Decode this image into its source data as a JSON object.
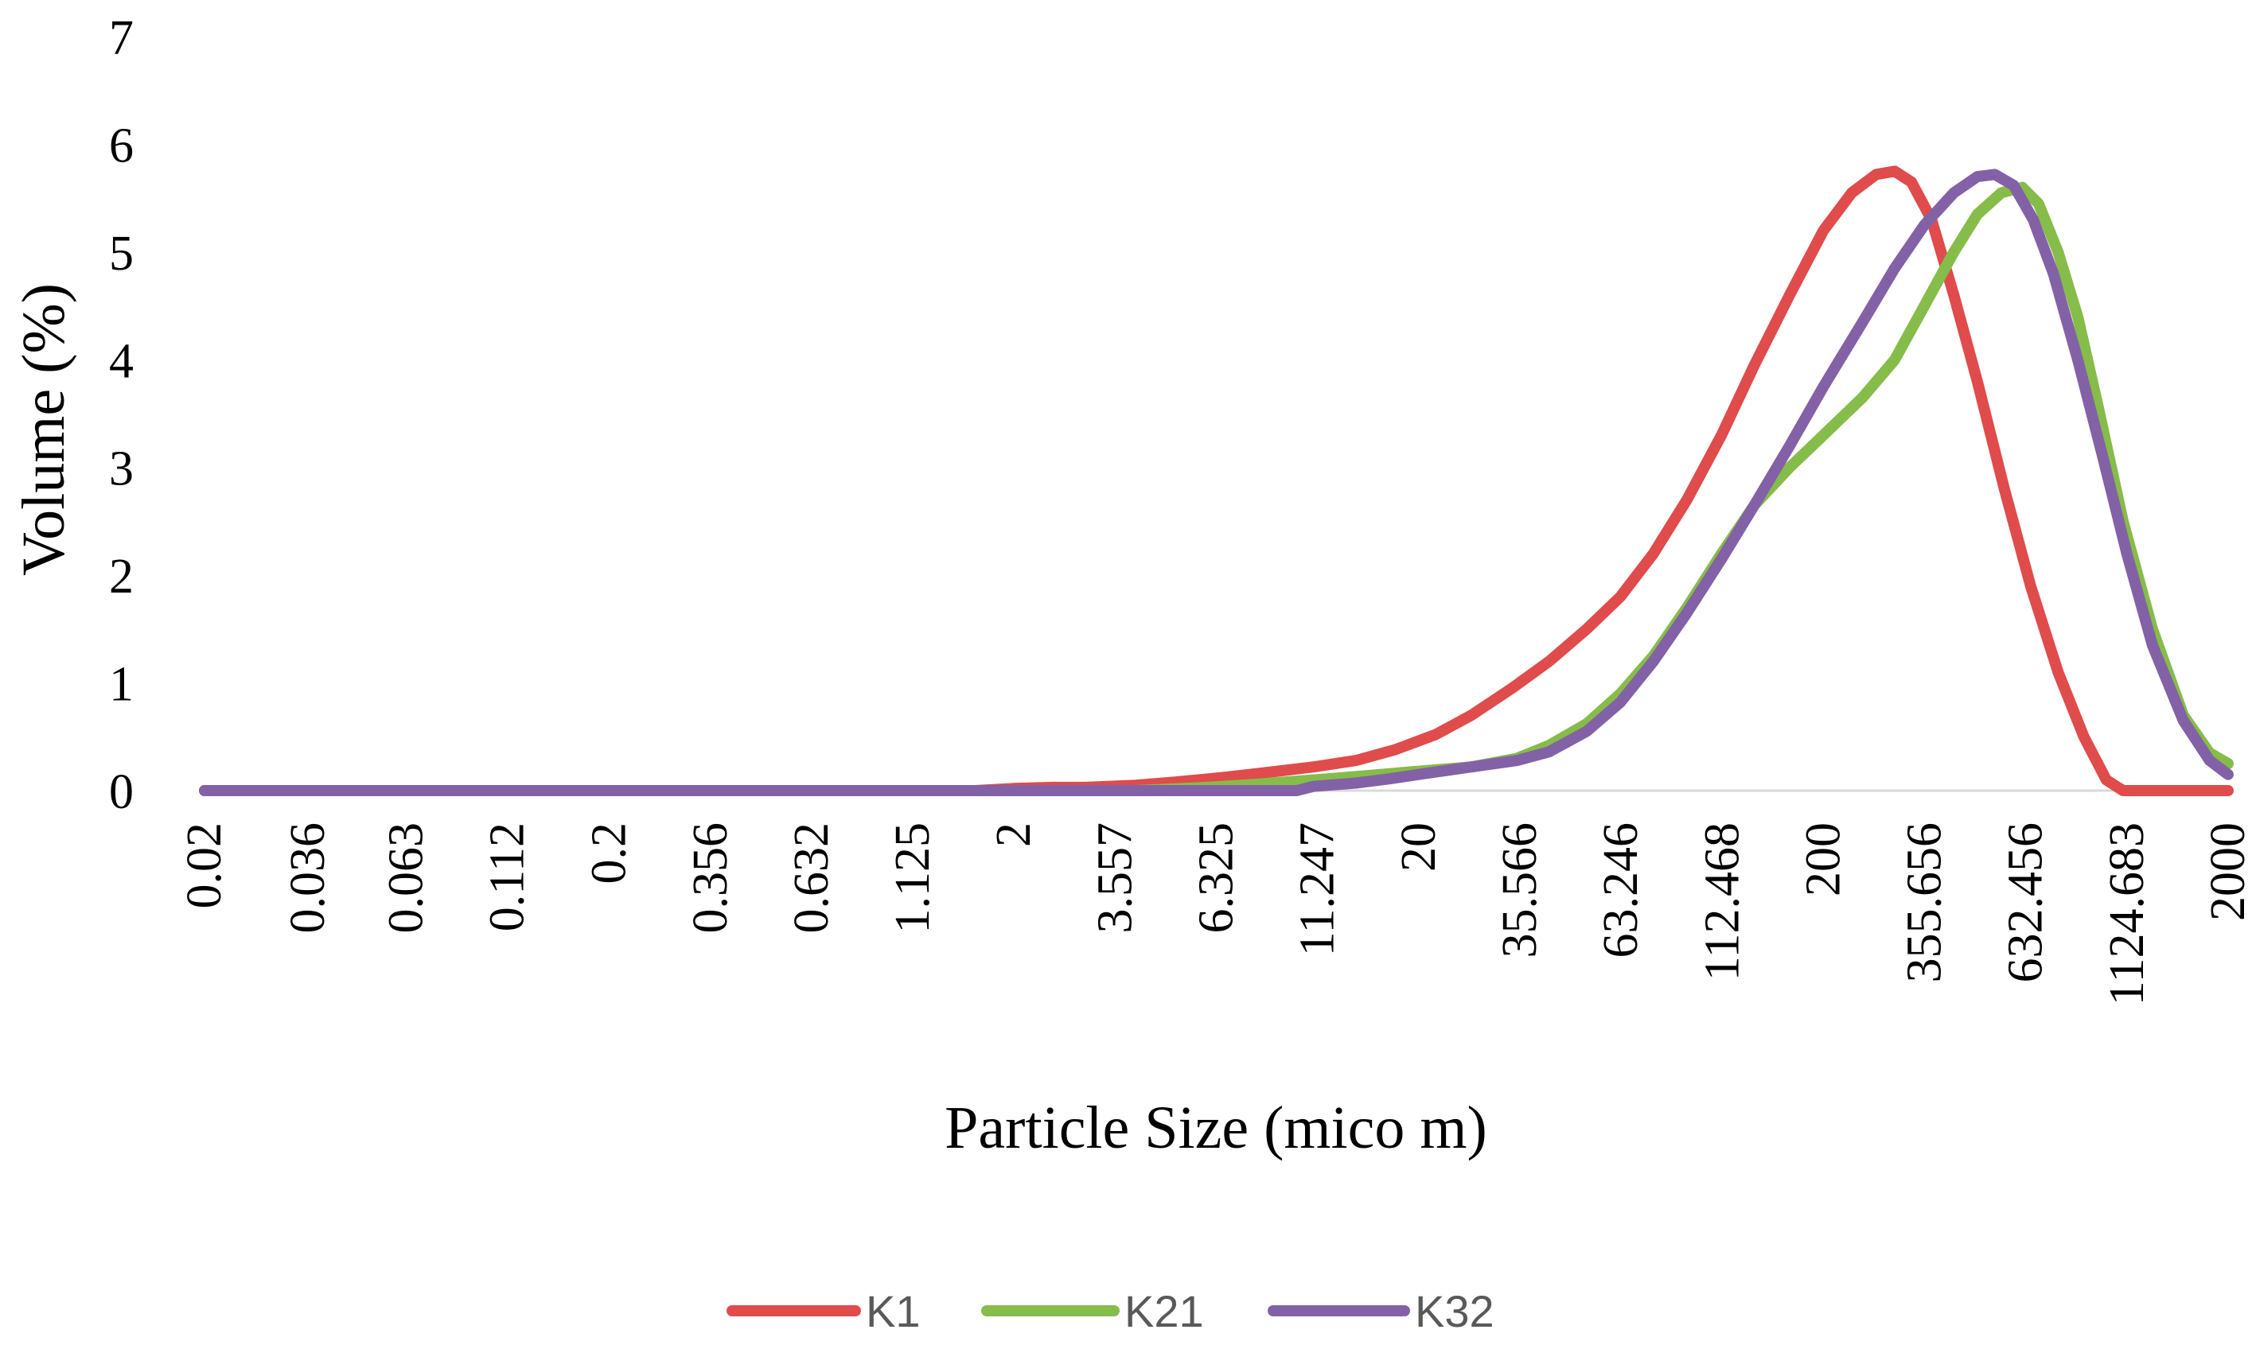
{
  "chart_data": {
    "type": "line",
    "title": "",
    "xlabel": "Particle Size (mico m)",
    "ylabel": "Volume (%)",
    "ylim": [
      0,
      7
    ],
    "yticks": [
      "0",
      "1",
      "2",
      "3",
      "4",
      "5",
      "6",
      "7"
    ],
    "x_tick_labels": [
      "0.02",
      "0.036",
      "0.063",
      "0.112",
      "0.2",
      "0.356",
      "0.632",
      "1.125",
      "2",
      "3.557",
      "6.325",
      "11.247",
      "20",
      "35.566",
      "63.246",
      "112.468",
      "200",
      "355.656",
      "632.456",
      "1124.683",
      "2000"
    ],
    "x_range_log10": [
      -1.699,
      3.301
    ],
    "grid": false,
    "legend_position": "bottom",
    "series": [
      {
        "name": "K1",
        "color": "#E04B4B",
        "points": [
          [
            0.02,
            0
          ],
          [
            0.2,
            0
          ],
          [
            1.0,
            0
          ],
          [
            1.6,
            0
          ],
          [
            2.0,
            0.02
          ],
          [
            2.5,
            0.03
          ],
          [
            3.0,
            0.03
          ],
          [
            4.0,
            0.05
          ],
          [
            5.0,
            0.08
          ],
          [
            6.5,
            0.12
          ],
          [
            8.5,
            0.17
          ],
          [
            11.0,
            0.22
          ],
          [
            14.0,
            0.28
          ],
          [
            17.5,
            0.38
          ],
          [
            22.0,
            0.52
          ],
          [
            27.0,
            0.7
          ],
          [
            34.0,
            0.95
          ],
          [
            42.0,
            1.2
          ],
          [
            52.0,
            1.5
          ],
          [
            63.0,
            1.8
          ],
          [
            76.0,
            2.2
          ],
          [
            92.0,
            2.7
          ],
          [
            112.0,
            3.3
          ],
          [
            135.0,
            3.95
          ],
          [
            165.0,
            4.6
          ],
          [
            200.0,
            5.2
          ],
          [
            235.0,
            5.55
          ],
          [
            270.0,
            5.72
          ],
          [
            300.0,
            5.75
          ],
          [
            330.0,
            5.65
          ],
          [
            370.0,
            5.3
          ],
          [
            420.0,
            4.6
          ],
          [
            480.0,
            3.8
          ],
          [
            560.0,
            2.8
          ],
          [
            650.0,
            1.9
          ],
          [
            760.0,
            1.1
          ],
          [
            880.0,
            0.5
          ],
          [
            1000.0,
            0.1
          ],
          [
            1100.0,
            0
          ],
          [
            1300.0,
            0
          ],
          [
            2000.0,
            0
          ]
        ]
      },
      {
        "name": "K21",
        "color": "#86BC4A",
        "points": [
          [
            0.02,
            0
          ],
          [
            0.2,
            0
          ],
          [
            2.0,
            0
          ],
          [
            4.0,
            0
          ],
          [
            6.0,
            0.03
          ],
          [
            8.0,
            0.06
          ],
          [
            11.0,
            0.1
          ],
          [
            14.0,
            0.13
          ],
          [
            20.0,
            0.18
          ],
          [
            27.0,
            0.22
          ],
          [
            35.0,
            0.3
          ],
          [
            42.0,
            0.42
          ],
          [
            52.0,
            0.62
          ],
          [
            63.0,
            0.9
          ],
          [
            76.0,
            1.25
          ],
          [
            92.0,
            1.7
          ],
          [
            112.0,
            2.2
          ],
          [
            135.0,
            2.65
          ],
          [
            165.0,
            3.0
          ],
          [
            200.0,
            3.3
          ],
          [
            250.0,
            3.65
          ],
          [
            300.0,
            4.0
          ],
          [
            355.0,
            4.5
          ],
          [
            420.0,
            5.0
          ],
          [
            480.0,
            5.35
          ],
          [
            550.0,
            5.55
          ],
          [
            620.0,
            5.6
          ],
          [
            680.0,
            5.45
          ],
          [
            760.0,
            5.0
          ],
          [
            850.0,
            4.4
          ],
          [
            950.0,
            3.6
          ],
          [
            1100.0,
            2.5
          ],
          [
            1300.0,
            1.5
          ],
          [
            1550.0,
            0.7
          ],
          [
            1800.0,
            0.35
          ],
          [
            2000.0,
            0.25
          ]
        ]
      },
      {
        "name": "K32",
        "color": "#8361A6",
        "points": [
          [
            0.02,
            0
          ],
          [
            0.2,
            0
          ],
          [
            2.0,
            0
          ],
          [
            6.0,
            0
          ],
          [
            10.0,
            0
          ],
          [
            11.0,
            0.04
          ],
          [
            14.0,
            0.07
          ],
          [
            17.0,
            0.11
          ],
          [
            20.0,
            0.15
          ],
          [
            27.0,
            0.22
          ],
          [
            35.0,
            0.28
          ],
          [
            42.0,
            0.36
          ],
          [
            52.0,
            0.55
          ],
          [
            63.0,
            0.82
          ],
          [
            76.0,
            1.2
          ],
          [
            92.0,
            1.65
          ],
          [
            112.0,
            2.15
          ],
          [
            135.0,
            2.65
          ],
          [
            165.0,
            3.2
          ],
          [
            200.0,
            3.75
          ],
          [
            250.0,
            4.35
          ],
          [
            300.0,
            4.85
          ],
          [
            355.0,
            5.25
          ],
          [
            420.0,
            5.55
          ],
          [
            480.0,
            5.7
          ],
          [
            530.0,
            5.72
          ],
          [
            590.0,
            5.62
          ],
          [
            660.0,
            5.3
          ],
          [
            740.0,
            4.8
          ],
          [
            850.0,
            4.0
          ],
          [
            980.0,
            3.1
          ],
          [
            1124.0,
            2.2
          ],
          [
            1300.0,
            1.35
          ],
          [
            1550.0,
            0.65
          ],
          [
            1800.0,
            0.28
          ],
          [
            2000.0,
            0.15
          ]
        ]
      }
    ]
  }
}
